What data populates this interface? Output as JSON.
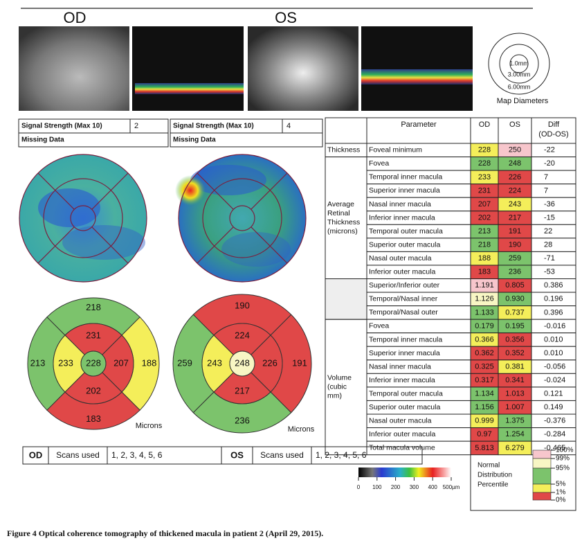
{
  "eyes": [
    "OD",
    "OS"
  ],
  "map_diameters": {
    "rings": [
      "1.0mm",
      "3.00mm",
      "6.00mm"
    ],
    "title": "Map Diameters"
  },
  "signal": [
    {
      "label": "Signal Strength (Max 10)",
      "value": "2",
      "missing": "Missing Data"
    },
    {
      "label": "Signal Strength (Max 10)",
      "value": "4",
      "missing": "Missing Data"
    }
  ],
  "sector_maps": [
    {
      "center": {
        "value": "228",
        "color": "#7cc36c"
      },
      "inner": [
        {
          "value": "231",
          "color": "#e04848"
        },
        {
          "value": "207",
          "color": "#e04848"
        },
        {
          "value": "202",
          "color": "#e04848"
        },
        {
          "value": "233",
          "color": "#f4ee5a"
        }
      ],
      "outer": [
        {
          "value": "218",
          "color": "#7cc36c"
        },
        {
          "value": "188",
          "color": "#f4ee5a"
        },
        {
          "value": "183",
          "color": "#e04848"
        },
        {
          "value": "213",
          "color": "#7cc36c"
        }
      ],
      "unit": "Microns"
    },
    {
      "center": {
        "value": "248",
        "color": "#f8f6c4"
      },
      "inner": [
        {
          "value": "224",
          "color": "#e04848"
        },
        {
          "value": "226",
          "color": "#e04848"
        },
        {
          "value": "217",
          "color": "#e04848"
        },
        {
          "value": "243",
          "color": "#f4ee5a"
        }
      ],
      "outer": [
        {
          "value": "190",
          "color": "#e04848"
        },
        {
          "value": "191",
          "color": "#e04848"
        },
        {
          "value": "236",
          "color": "#7cc36c"
        },
        {
          "value": "259",
          "color": "#7cc36c"
        }
      ],
      "unit": "Microns"
    }
  ],
  "table": {
    "header": {
      "parameter": "Parameter",
      "od": "OD",
      "os": "OS",
      "diff": [
        "Diff",
        "(OD-OS)"
      ]
    },
    "groups": [
      {
        "label": [
          "Thickness"
        ],
        "rows": [
          {
            "cells": [
              "Foveal minimum",
              "228",
              "250",
              "-22"
            ],
            "colors": [
              "#f4ee5a",
              "#f7c6cc"
            ]
          }
        ]
      },
      {
        "label": [
          "Average",
          "Retinal",
          "Thickness",
          "(microns)"
        ],
        "rows": [
          {
            "cells": [
              "Fovea",
              "228",
              "248",
              "-20"
            ],
            "colors": [
              "#7cc36c",
              "#7cc36c"
            ]
          },
          {
            "cells": [
              "Temporal inner macula",
              "233",
              "226",
              "7"
            ],
            "colors": [
              "#f4ee5a",
              "#e04848"
            ]
          },
          {
            "cells": [
              "Superior inner macula",
              "231",
              "224",
              "7"
            ],
            "colors": [
              "#e04848",
              "#e04848"
            ]
          },
          {
            "cells": [
              "Nasal inner macula",
              "207",
              "243",
              "-36"
            ],
            "colors": [
              "#e04848",
              "#f4ee5a"
            ]
          },
          {
            "cells": [
              "Inferior inner macula",
              "202",
              "217",
              "-15"
            ],
            "colors": [
              "#e04848",
              "#e04848"
            ]
          },
          {
            "cells": [
              "Temporal outer macula",
              "213",
              "191",
              "22"
            ],
            "colors": [
              "#7cc36c",
              "#e04848"
            ]
          },
          {
            "cells": [
              "Superior outer macula",
              "218",
              "190",
              "28"
            ],
            "colors": [
              "#7cc36c",
              "#e04848"
            ]
          },
          {
            "cells": [
              "Nasal outer macula",
              "188",
              "259",
              "-71"
            ],
            "colors": [
              "#f4ee5a",
              "#7cc36c"
            ]
          },
          {
            "cells": [
              "Inferior outer macula",
              "183",
              "236",
              "-53"
            ],
            "colors": [
              "#e04848",
              "#7cc36c"
            ]
          }
        ]
      },
      {
        "rows": [
          {
            "cells": [
              "Superior/Inferior outer",
              "1.191",
              "0.805",
              "0.386"
            ],
            "colors": [
              "#f7c6cc",
              "#e04848"
            ]
          },
          {
            "cells": [
              "Temporal/Nasal inner",
              "1.126",
              "0.930",
              "0.196"
            ],
            "colors": [
              "#f8f6c4",
              "#7cc36c"
            ]
          },
          {
            "cells": [
              "Temporal/Nasal outer",
              "1.133",
              "0.737",
              "0.396"
            ],
            "colors": [
              "#7cc36c",
              "#f4ee5a"
            ]
          }
        ]
      },
      {
        "label": [
          "Volume",
          "(cubic",
          "mm)"
        ],
        "rows": [
          {
            "cells": [
              "Fovea",
              "0.179",
              "0.195",
              "-0.016"
            ],
            "colors": [
              "#7cc36c",
              "#7cc36c"
            ]
          },
          {
            "cells": [
              "Temporal inner macula",
              "0.366",
              "0.356",
              "0.010"
            ],
            "colors": [
              "#f4ee5a",
              "#e04848"
            ]
          },
          {
            "cells": [
              "Superior inner macula",
              "0.362",
              "0.352",
              "0.010"
            ],
            "colors": [
              "#e04848",
              "#e04848"
            ]
          },
          {
            "cells": [
              "Nasal inner macula",
              "0.325",
              "0.381",
              "-0.056"
            ],
            "colors": [
              "#e04848",
              "#f4ee5a"
            ]
          },
          {
            "cells": [
              "Inferior inner macula",
              "0.317",
              "0.341",
              "-0.024"
            ],
            "colors": [
              "#e04848",
              "#e04848"
            ]
          },
          {
            "cells": [
              "Temporal outer macula",
              "1.134",
              "1.013",
              "0.121"
            ],
            "colors": [
              "#7cc36c",
              "#e04848"
            ]
          },
          {
            "cells": [
              "Superior outer macula",
              "1.156",
              "1.007",
              "0.149"
            ],
            "colors": [
              "#7cc36c",
              "#e04848"
            ]
          },
          {
            "cells": [
              "Nasal outer macula",
              "0.999",
              "1.375",
              "-0.376"
            ],
            "colors": [
              "#f4ee5a",
              "#7cc36c"
            ]
          },
          {
            "cells": [
              "Inferior outer macula",
              "0.97",
              "1.254",
              "-0.284"
            ],
            "colors": [
              "#e04848",
              "#7cc36c"
            ]
          },
          {
            "cells": [
              "Total macula volume",
              "5.813",
              "6.279",
              "-0.465"
            ],
            "colors": [
              "#e04848",
              "#f4ee5a"
            ]
          }
        ]
      }
    ]
  },
  "scans": [
    {
      "eye": "OD",
      "label": "Scans used",
      "value": "1, 2, 3, 4, 5, 6"
    },
    {
      "eye": "OS",
      "label": "Scans used",
      "value": "1, 2, 3, 4, 5, 6"
    }
  ],
  "color_scale": {
    "ticks": [
      "0",
      "100",
      "200",
      "300",
      "400",
      "500µm"
    ]
  },
  "legend": {
    "title": [
      "Normal",
      "Distribution",
      "Percentile"
    ],
    "ticks": [
      "100%",
      "99%",
      "95%",
      "5%",
      "1%",
      "0%"
    ],
    "colors": [
      "#f7c6cc",
      "#f8f6c4",
      "#7cc36c",
      "#f4ee5a",
      "#e04848"
    ]
  },
  "caption": "Figure 4 Optical coherence tomography of thickened macula in patient 2 (April 29, 2015)."
}
